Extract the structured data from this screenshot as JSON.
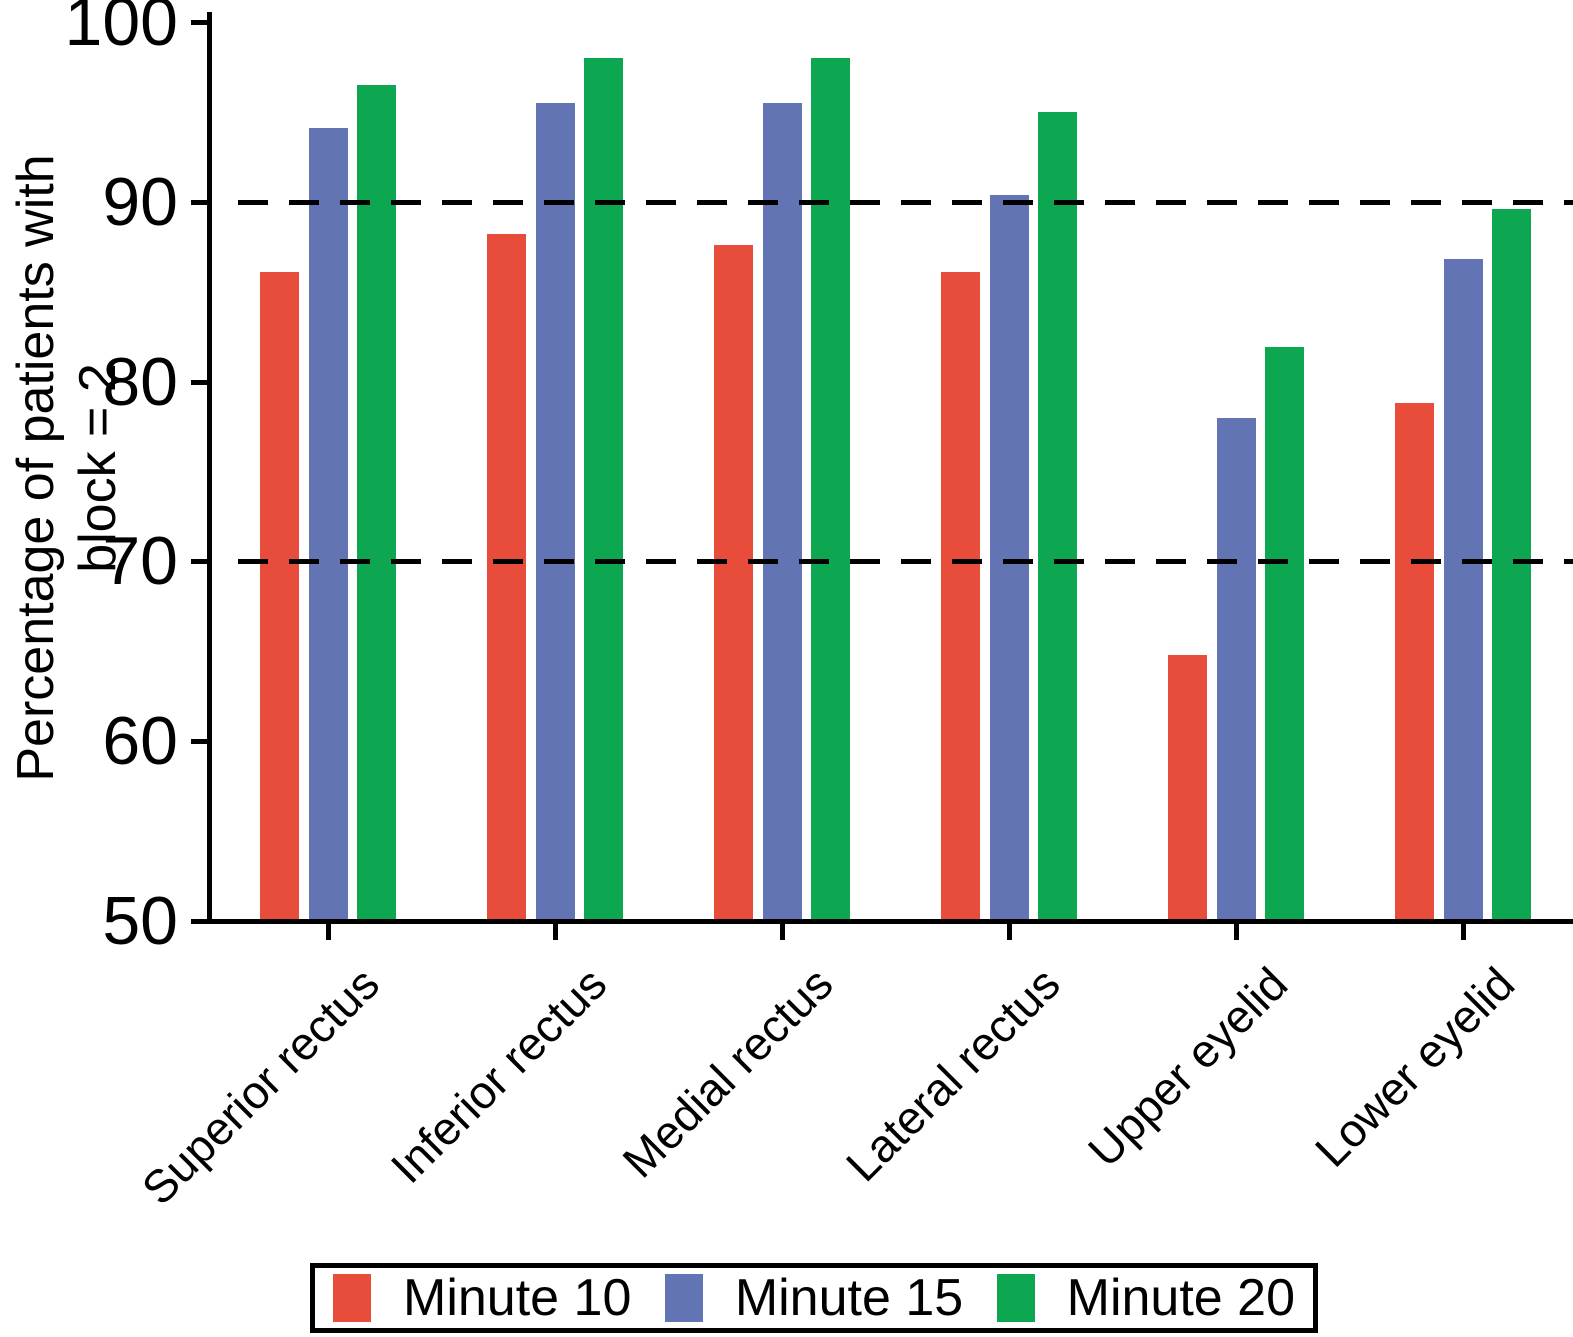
{
  "chart_data": {
    "type": "bar",
    "title": "",
    "xlabel": "",
    "ylabel": "Percentage of patients with block = 2",
    "ylabel_lines": [
      "Percentage of patients with",
      "block = 2"
    ],
    "categories": [
      "Superior rectus",
      "Inferior rectus",
      "Medial rectus",
      "Lateral rectus",
      "Upper eyelid",
      "Lower eyelid"
    ],
    "series": [
      {
        "name": "Minute 10",
        "color": "#E84C3B",
        "values": [
          86.1,
          88.2,
          87.6,
          86.1,
          64.8,
          78.8
        ]
      },
      {
        "name": "Minute 15",
        "color": "#6374B5",
        "values": [
          94.1,
          95.5,
          95.5,
          90.4,
          78.0,
          86.8
        ]
      },
      {
        "name": "Minute 20",
        "color": "#0CA750",
        "values": [
          96.5,
          98.0,
          98.0,
          95.0,
          81.9,
          89.6
        ]
      }
    ],
    "ylim": [
      50,
      100
    ],
    "yticks": [
      50,
      60,
      70,
      80,
      90,
      100
    ],
    "ref_lines": [
      70,
      90
    ],
    "grid": "horizontal dashed lines at 70 and 90",
    "legend_position": "bottom",
    "axis_color": "#000000",
    "background_color": "#FFFFFF"
  }
}
